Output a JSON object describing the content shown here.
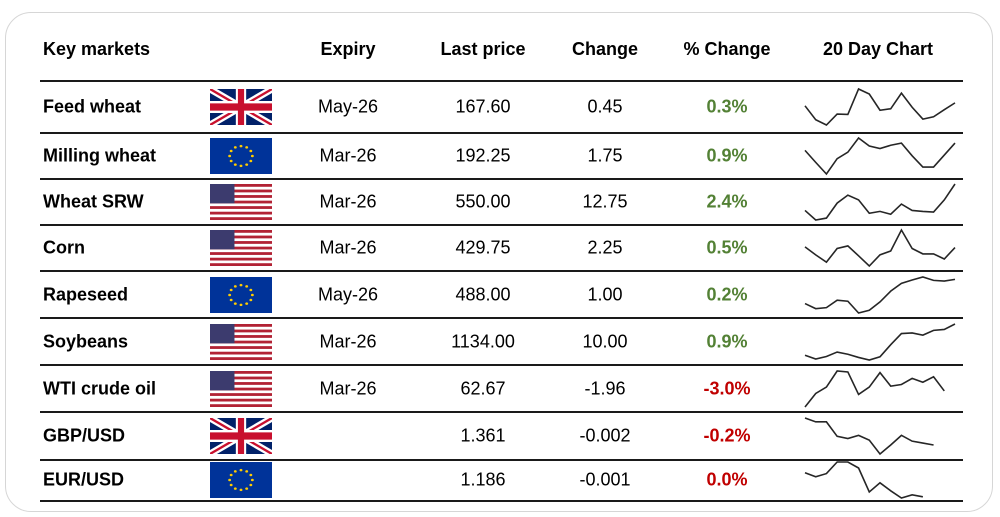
{
  "header": {
    "name": "Key markets",
    "expiry": "Expiry",
    "last": "Last price",
    "change": "Change",
    "pct": "% Change",
    "chart": "20 Day Chart"
  },
  "colors": {
    "positive": "#538135",
    "negative": "#c00000"
  },
  "rows": [
    {
      "name": "Feed wheat",
      "flag": "uk-flag",
      "expiry": "May-26",
      "last": "167.60",
      "change": "0.45",
      "pct": "0.3%",
      "trend": "pos",
      "spark": [
        75,
        28,
        10,
        47,
        46,
        132,
        115,
        60,
        65,
        118,
        70,
        30,
        38,
        62,
        85
      ]
    },
    {
      "name": "Milling wheat",
      "flag": "eu-flag",
      "expiry": "Mar-26",
      "last": "192.25",
      "change": "1.75",
      "pct": "0.9%",
      "trend": "pos",
      "spark": [
        83,
        50,
        18,
        60,
        78,
        117,
        95,
        88,
        97,
        103,
        68,
        37,
        37,
        70,
        103
      ]
    },
    {
      "name": "Wheat SRW",
      "flag": "us-flag",
      "expiry": "Mar-26",
      "last": "550.00",
      "change": "12.75",
      "pct": "2.4%",
      "trend": "pos",
      "spark": [
        42,
        12,
        18,
        65,
        90,
        75,
        33,
        39,
        30,
        62,
        42,
        39,
        37,
        75,
        125
      ]
    },
    {
      "name": "Corn",
      "flag": "us-flag",
      "expiry": "Mar-26",
      "last": "429.75",
      "change": "2.25",
      "pct": "0.5%",
      "trend": "pos",
      "spark": [
        70,
        45,
        22,
        65,
        73,
        42,
        10,
        45,
        57,
        123,
        65,
        48,
        48,
        32,
        68
      ]
    },
    {
      "name": "Rapeseed",
      "flag": "eu-flag",
      "expiry": "May-26",
      "last": "488.00",
      "change": "1.00",
      "pct": "0.2%",
      "trend": "pos",
      "spark": [
        43,
        28,
        31,
        53,
        50,
        15,
        23,
        48,
        80,
        103,
        113,
        122,
        112,
        110,
        115
      ]
    },
    {
      "name": "Soybeans",
      "flag": "us-flag",
      "expiry": "Mar-26",
      "last": "1134.00",
      "change": "10.00",
      "pct": "0.9%",
      "trend": "pos",
      "spark": [
        32,
        20,
        28,
        42,
        35,
        25,
        17,
        27,
        65,
        100,
        102,
        95,
        110,
        113,
        130
      ]
    },
    {
      "name": "WTI crude oil",
      "flag": "us-flag",
      "expiry": "Mar-26",
      "last": "62.67",
      "change": "-1.96",
      "pct": "-3.0%",
      "trend": "neg",
      "spark": [
        13,
        55,
        75,
        125,
        122,
        52,
        75,
        120,
        78,
        83,
        102,
        90,
        107,
        63
      ]
    },
    {
      "name": "GBP/USD",
      "flag": "uk-flag",
      "expiry": "",
      "last": "1.361",
      "change": "-0.002",
      "pct": "-0.2%",
      "trend": "neg",
      "spark": [
        127,
        115,
        115,
        70,
        63,
        73,
        58,
        15,
        43,
        73,
        55,
        49,
        43
      ]
    },
    {
      "name": "EUR/USD",
      "flag": "eu-flag",
      "expiry": "",
      "last": "1.186",
      "change": "-0.001",
      "pct": "0.0%",
      "trend": "neg",
      "spark": [
        75,
        65,
        73,
        102,
        102,
        87,
        27,
        50,
        30,
        12,
        20,
        15
      ]
    }
  ]
}
